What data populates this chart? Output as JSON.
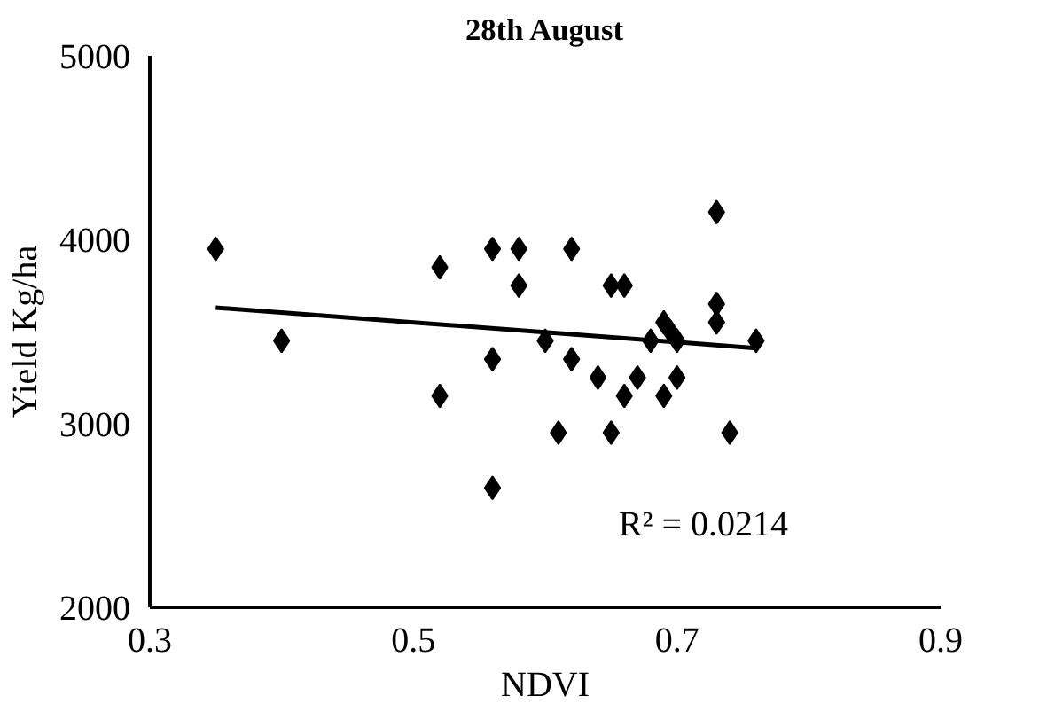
{
  "chart_data": {
    "type": "scatter",
    "title": "28th August",
    "xlabel": "NDVI",
    "ylabel": "Yield Kg/ha",
    "xlim": [
      0.3,
      0.9
    ],
    "xticks": [
      0.3,
      0.5,
      0.7,
      0.9
    ],
    "ylim": [
      2000,
      5000
    ],
    "yticks": [
      2000,
      3000,
      4000,
      5000
    ],
    "grid": false,
    "series": [
      {
        "marker": "diamond",
        "color": "#000000",
        "x": [
          0.35,
          0.4,
          0.52,
          0.52,
          0.56,
          0.58,
          0.58,
          0.62,
          0.65,
          0.66,
          0.73,
          0.56,
          0.56,
          0.6,
          0.62,
          0.64,
          0.61,
          0.65,
          0.74,
          0.67,
          0.66,
          0.69,
          0.7,
          0.69,
          0.68,
          0.7,
          0.695,
          0.73,
          0.73,
          0.76
        ],
        "values": [
          3950,
          3450,
          3850,
          3150,
          3950,
          3950,
          3750,
          3950,
          3750,
          3750,
          4150,
          3350,
          2650,
          3450,
          3350,
          3250,
          2950,
          2950,
          2950,
          3250,
          3150,
          3150,
          3250,
          3550,
          3450,
          3450,
          3500,
          3650,
          3550,
          3450
        ]
      },
      {
        "type": "line",
        "marker": "none",
        "color": "#000000",
        "x": [
          0.35,
          0.76
        ],
        "values": [
          3630,
          3410
        ]
      }
    ],
    "annotations": [
      "R² = 0.0214"
    ]
  }
}
